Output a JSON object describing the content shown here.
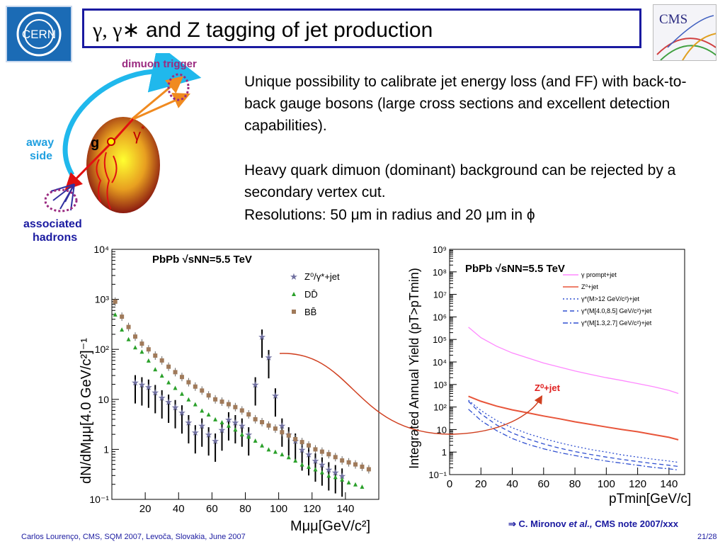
{
  "slide": {
    "title_prefix": "γ, γ∗",
    "title_rest": "and Z tagging of jet production",
    "paragraph1": "Unique possibility to calibrate jet energy loss (and FF) with back-to-back gauge bosons (large cross sections and excellent detection capabilities).",
    "paragraph2": "Heavy quark dimuon (dominant) background can be rejected by a secondary vertex cut.",
    "paragraph3": "Resolutions: 50 μm in radius and 20 μm in ϕ",
    "footer": "Carlos Lourenço, CMS, SQM 2007, Levoča, Slovakia, June 2007",
    "page": "21/28",
    "credit_arrow": "⇒",
    "credit_author": "C. Mironov",
    "credit_etal": "et al.,",
    "credit_note": "CMS note 2007/xxx",
    "logo_cms_text": "CMS",
    "logo_cern_text": "CERN"
  },
  "diagram": {
    "label_dimuon": "dimuon trigger",
    "label_away": "away",
    "label_side": "side",
    "label_g": "g",
    "label_gamma": "γ",
    "label_star": "*",
    "label_assoc1": "associated",
    "label_assoc2": "hadrons"
  },
  "chart_data": [
    {
      "type": "scatter",
      "title": "PbPb √sNN=5.5 TeV",
      "xlabel": "Mμμ[GeV/c²]",
      "ylabel": "dN/dMμμ[4.0 GeV/c²]⁻¹",
      "xlim": [
        0,
        160
      ],
      "ylim": [
        0.1,
        10000
      ],
      "yscale": "log",
      "x_ticks": [
        "20",
        "40",
        "60",
        "80",
        "100",
        "120",
        "140"
      ],
      "y_ticks": [
        "10⁻¹",
        "1",
        "10",
        "10²",
        "10³",
        "10⁴"
      ],
      "legend_position": "top-right",
      "series": [
        {
          "name": "Z⁰/γ*+jet",
          "color": "#7070a0",
          "marker": "star",
          "points": [
            [
              14,
              22
            ],
            [
              18,
              20
            ],
            [
              22,
              18
            ],
            [
              26,
              14
            ],
            [
              30,
              11
            ],
            [
              34,
              9
            ],
            [
              38,
              7
            ],
            [
              42,
              5.5
            ],
            [
              46,
              3.5
            ],
            [
              50,
              2.2
            ],
            [
              54,
              3
            ],
            [
              58,
              2
            ],
            [
              62,
              1.5
            ],
            [
              66,
              2.5
            ],
            [
              70,
              4
            ],
            [
              74,
              3.5
            ],
            [
              78,
              3
            ],
            [
              82,
              2
            ],
            [
              86,
              20
            ],
            [
              90,
              180
            ],
            [
              94,
              70
            ],
            [
              98,
              12
            ],
            [
              102,
              3
            ],
            [
              106,
              2
            ],
            [
              110,
              1.5
            ],
            [
              114,
              1
            ],
            [
              118,
              0.8
            ],
            [
              122,
              0.6
            ],
            [
              126,
              0.5
            ],
            [
              130,
              0.4
            ],
            [
              134,
              0.35
            ],
            [
              138,
              0.3
            ]
          ]
        },
        {
          "name": "DD̄",
          "color": "#2aa02a",
          "marker": "triangle",
          "points": [
            [
              2,
              500
            ],
            [
              6,
              250
            ],
            [
              10,
              160
            ],
            [
              14,
              110
            ],
            [
              18,
              90
            ],
            [
              22,
              60
            ],
            [
              26,
              40
            ],
            [
              30,
              30
            ],
            [
              34,
              22
            ],
            [
              38,
              17
            ],
            [
              42,
              13
            ],
            [
              46,
              10
            ],
            [
              50,
              8
            ],
            [
              54,
              6
            ],
            [
              58,
              5
            ],
            [
              62,
              4
            ],
            [
              66,
              3.5
            ],
            [
              70,
              3
            ],
            [
              74,
              2.5
            ],
            [
              78,
              2
            ],
            [
              82,
              1.8
            ],
            [
              86,
              1.5
            ],
            [
              90,
              1.2
            ],
            [
              94,
              1
            ],
            [
              98,
              0.9
            ],
            [
              102,
              0.8
            ],
            [
              106,
              0.7
            ],
            [
              110,
              0.6
            ],
            [
              114,
              0.5
            ],
            [
              118,
              0.45
            ],
            [
              122,
              0.4
            ],
            [
              126,
              0.35
            ],
            [
              130,
              0.3
            ],
            [
              134,
              0.28
            ],
            [
              138,
              0.25
            ],
            [
              142,
              0.22
            ],
            [
              146,
              0.2
            ],
            [
              150,
              0.18
            ]
          ]
        },
        {
          "name": "BB̄",
          "color": "#a07a5a",
          "marker": "square",
          "points": [
            [
              2,
              900
            ],
            [
              6,
              450
            ],
            [
              10,
              280
            ],
            [
              14,
              180
            ],
            [
              18,
              130
            ],
            [
              22,
              100
            ],
            [
              26,
              75
            ],
            [
              30,
              60
            ],
            [
              34,
              45
            ],
            [
              38,
              35
            ],
            [
              42,
              28
            ],
            [
              46,
              22
            ],
            [
              50,
              18
            ],
            [
              54,
              15
            ],
            [
              58,
              12
            ],
            [
              62,
              10
            ],
            [
              66,
              9
            ],
            [
              70,
              8
            ],
            [
              74,
              7
            ],
            [
              78,
              6
            ],
            [
              82,
              5
            ],
            [
              86,
              4
            ],
            [
              90,
              3.5
            ],
            [
              94,
              3
            ],
            [
              98,
              2.6
            ],
            [
              102,
              2.2
            ],
            [
              106,
              1.9
            ],
            [
              110,
              1.6
            ],
            [
              114,
              1.4
            ],
            [
              118,
              1.2
            ],
            [
              122,
              1
            ],
            [
              126,
              0.9
            ],
            [
              130,
              0.8
            ],
            [
              134,
              0.7
            ],
            [
              138,
              0.6
            ],
            [
              142,
              0.55
            ],
            [
              146,
              0.5
            ],
            [
              150,
              0.45
            ],
            [
              154,
              0.4
            ]
          ]
        }
      ]
    },
    {
      "type": "line",
      "title": "PbPb √sNN=5.5 TeV",
      "xlabel": "pTmin[GeV/c]",
      "ylabel": "Integrated Annual Yield (pT>pTmin)",
      "xlim": [
        0,
        150
      ],
      "ylim": [
        0.1,
        1000000000
      ],
      "yscale": "log",
      "x_ticks": [
        "0",
        "20",
        "40",
        "60",
        "80",
        "100",
        "120",
        "140"
      ],
      "y_ticks": [
        "10⁻¹",
        "1",
        "10",
        "10²",
        "10³",
        "10⁴",
        "10⁵",
        "10⁶",
        "10⁷",
        "10⁸",
        "10⁹"
      ],
      "legend_position": "top-right",
      "annotation": "Z⁰+jet",
      "series": [
        {
          "name": "γ prompt+jet",
          "color": "#ff88ff",
          "style": "solid",
          "x": [
            12,
            20,
            30,
            40,
            50,
            60,
            70,
            80,
            90,
            100,
            110,
            120,
            130,
            140,
            146
          ],
          "y": [
            350000,
            120000,
            50000,
            25000,
            15000,
            9000,
            6000,
            4000,
            2800,
            2000,
            1500,
            1100,
            800,
            550,
            400
          ]
        },
        {
          "name": "Z⁰+jet",
          "color": "#e8553a",
          "style": "solid",
          "x": [
            12,
            20,
            30,
            40,
            50,
            60,
            70,
            80,
            90,
            100,
            110,
            120,
            130,
            140,
            146
          ],
          "y": [
            300,
            180,
            110,
            75,
            55,
            40,
            30,
            22,
            17,
            13,
            10,
            8,
            6,
            4.5,
            3.5
          ]
        },
        {
          "name": "γ*(M>12 GeV/c²)+jet",
          "color": "#3050d0",
          "style": "dotted",
          "x": [
            12,
            20,
            30,
            40,
            50,
            60,
            70,
            80,
            90,
            100,
            110,
            120,
            130,
            140,
            146
          ],
          "y": [
            200,
            70,
            25,
            12,
            6.5,
            4,
            2.6,
            1.8,
            1.3,
            1,
            0.75,
            0.6,
            0.48,
            0.4,
            0.35
          ]
        },
        {
          "name": "γ*(M[4.0,8.5] GeV/c²)+jet",
          "color": "#3050d0",
          "style": "dashed",
          "x": [
            12,
            20,
            30,
            40,
            50,
            60,
            70,
            80,
            90,
            100,
            110,
            120,
            130,
            140,
            146
          ],
          "y": [
            180,
            50,
            16,
            7,
            3.8,
            2.3,
            1.5,
            1.05,
            0.78,
            0.6,
            0.47,
            0.38,
            0.31,
            0.26,
            0.23
          ]
        },
        {
          "name": "γ*(M[1.3,2.7] GeV/c²)+jet",
          "color": "#3050d0",
          "style": "dashdot",
          "x": [
            12,
            20,
            30,
            40,
            50,
            60,
            70,
            80,
            90,
            100,
            110,
            120,
            130,
            140,
            146
          ],
          "y": [
            80,
            25,
            9,
            4,
            2.2,
            1.4,
            0.95,
            0.7,
            0.52,
            0.4,
            0.32,
            0.26,
            0.21,
            0.18,
            0.16
          ]
        }
      ]
    }
  ]
}
